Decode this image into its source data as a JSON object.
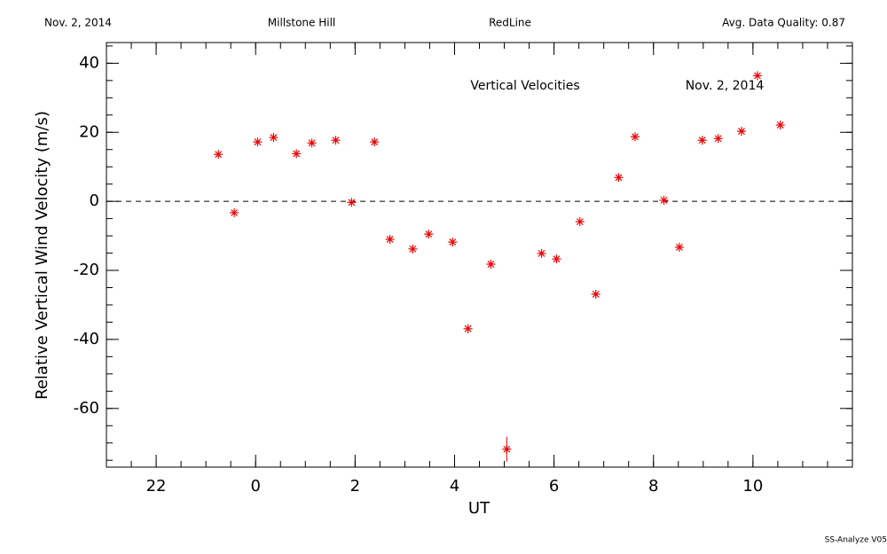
{
  "chart_data": {
    "type": "scatter",
    "header": [
      "Nov. 2, 2014",
      "Millstone Hill",
      "RedLine",
      "Avg. Data Quality: 0.87"
    ],
    "annotations": [
      "Vertical Velocities",
      "Nov. 2, 2014"
    ],
    "footer": "SS-Analyze V05",
    "xlabel": "UT",
    "ylabel": "Relative Vertical Wind Velocity (m/s)",
    "color": "#ee0000",
    "x": [
      -0.75,
      -0.43,
      0.04,
      0.36,
      0.82,
      1.13,
      1.61,
      1.93,
      2.39,
      2.7,
      3.16,
      3.48,
      3.96,
      4.27,
      4.73,
      5.05,
      5.75,
      6.05,
      6.52,
      6.84,
      7.3,
      7.63,
      8.21,
      8.52,
      8.98,
      9.3,
      9.77,
      10.09,
      10.55
    ],
    "values": [
      13.6,
      -3.3,
      17.2,
      18.5,
      13.8,
      16.9,
      17.7,
      -0.3,
      17.2,
      -11.0,
      -13.8,
      -9.5,
      -11.8,
      -36.9,
      -18.2,
      -71.8,
      -15.1,
      -16.7,
      -5.9,
      -26.9,
      6.9,
      18.7,
      0.3,
      -13.3,
      17.7,
      18.2,
      20.3,
      36.4,
      22.1
    ],
    "errors": [
      null,
      null,
      null,
      null,
      null,
      null,
      null,
      null,
      null,
      null,
      null,
      null,
      null,
      null,
      null,
      3.6,
      null,
      null,
      null,
      null,
      null,
      null,
      null,
      null,
      null,
      null,
      null,
      null,
      null
    ],
    "reference_line": 0,
    "xlim": [
      -3,
      12
    ],
    "ylim": [
      -77,
      46
    ],
    "xticks": [
      {
        "value": -2,
        "label": "22"
      },
      0,
      2,
      4,
      6,
      8,
      10
    ],
    "yticks": [
      -60,
      -40,
      -20,
      0,
      20,
      40
    ],
    "xminor_step": 0.5,
    "yminor_step": 5
  }
}
